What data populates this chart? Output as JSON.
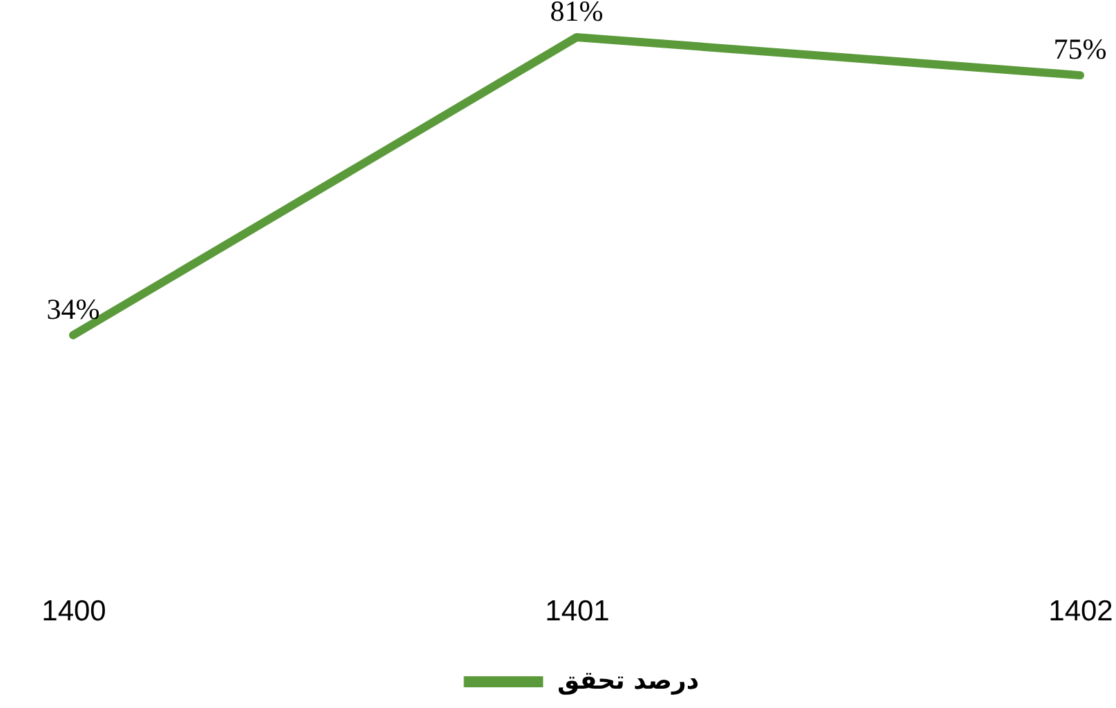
{
  "chart_data": {
    "type": "line",
    "categories": [
      "1400",
      "1401",
      "1402"
    ],
    "series": [
      {
        "name": "درصد تحقق",
        "color": "#5b9a3a",
        "values": [
          34,
          81,
          75
        ],
        "value_labels": [
          "34%",
          "81%",
          "75%"
        ]
      }
    ],
    "tick_labels": "x",
    "legend": "bottom"
  }
}
